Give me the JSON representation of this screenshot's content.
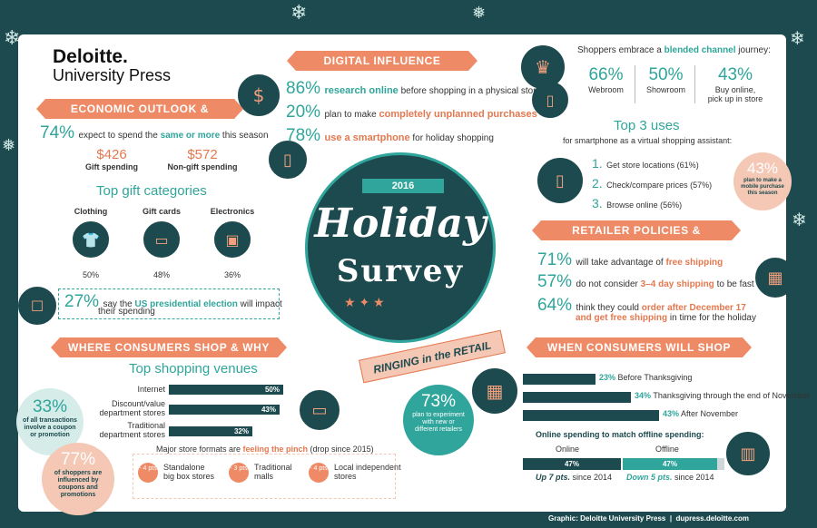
{
  "logo": {
    "line1": "Deloitte.",
    "line2": "University Press"
  },
  "banners": {
    "digital": "DIGITAL INFLUENCE",
    "economic": "ECONOMIC OUTLOOK & SPENDING",
    "retailer": "RETAILER POLICIES & PRACTICES",
    "where": "WHERE CONSUMERS SHOP & WHY",
    "when": "WHEN CONSUMERS WILL SHOP"
  },
  "digital": {
    "items": [
      {
        "pct": "86%",
        "bold": "research online",
        "rest": " before shopping in a physical store"
      },
      {
        "pct": "20%",
        "pre": "plan to make ",
        "bold": "completely unplanned purchases",
        "rest": ""
      },
      {
        "pct": "78%",
        "bold": "use a smartphone",
        "rest": " for holiday shopping"
      }
    ]
  },
  "economic": {
    "pct": "74%",
    "pre": "expect to spend the ",
    "bold": "same or more",
    "rest": " this season",
    "gift_value": "$426",
    "gift_label": "Gift spending",
    "nongift_value": "$572",
    "nongift_label": "Non-gift spending"
  },
  "gifts": {
    "title": "Top gift categories",
    "items": [
      {
        "label": "Clothing",
        "pct": "50%"
      },
      {
        "label": "Gift cards",
        "pct": "48%"
      },
      {
        "label": "Electronics",
        "pct": "36%"
      }
    ]
  },
  "election": {
    "pct": "27%",
    "pre": "say the ",
    "bold": "US presidential election",
    "rest": " will impact",
    "line2": "their spending"
  },
  "channel": {
    "intro_pre": "Shoppers embrace a ",
    "intro_bold": "blended channel",
    "intro_rest": " journey:",
    "items": [
      {
        "pct": "66%",
        "label": "Webroom"
      },
      {
        "pct": "50%",
        "label": "Showroom"
      },
      {
        "pct": "43%",
        "label": "Buy online,",
        "label2": "pick up in store"
      }
    ]
  },
  "uses": {
    "title": "Top 3 uses",
    "subtitle": "for smartphone as a virtual shopping assistant:",
    "items": [
      {
        "num": "1.",
        "text": "Get store locations (61%)"
      },
      {
        "num": "2.",
        "text": "Check/compare prices (57%)"
      },
      {
        "num": "3.",
        "text": "Browse online (56%)"
      }
    ]
  },
  "mobile_bubble": {
    "pct": "43%",
    "text": "plan to make a mobile purchase this season"
  },
  "center": {
    "year": "2016",
    "word1": "Holiday",
    "word2": "Survey",
    "ribbon": "RINGING in the RETAIL"
  },
  "retailer": {
    "items": [
      {
        "pct": "71%",
        "pre": "will take advantage of ",
        "bold": "free shipping",
        "rest": ""
      },
      {
        "pct": "57%",
        "pre": "do not consider ",
        "bold": "3–4 day shipping",
        "rest": " to be fast"
      },
      {
        "pct": "64%",
        "pre": "think they could ",
        "bold": "order after December 17",
        "line2_bold": "and get free shipping",
        "line2_rest": " in time for the holiday"
      }
    ]
  },
  "venues": {
    "title": "Top shopping venues",
    "rows": [
      {
        "label": "Internet",
        "label2": "",
        "value": "50%"
      },
      {
        "label": "Discount/value",
        "label2": "department stores",
        "value": "43%"
      },
      {
        "label": "Traditional",
        "label2": "department stores",
        "value": "32%"
      }
    ]
  },
  "coupon": {
    "pct": "33%",
    "text": "of all transactions involve a coupon or promotion"
  },
  "influenced": {
    "pct": "77%",
    "text": "of shoppers are influenced by coupons and promotions"
  },
  "pinch": {
    "pre": "Major store formats are ",
    "bold": "feeling the pinch",
    "rest": " (drop since 2015)",
    "items": [
      {
        "badge": "- 4 pts",
        "label": "Standalone",
        "label2": "big box stores"
      },
      {
        "badge": "- 3 pts",
        "label": "Traditional",
        "label2": "malls"
      },
      {
        "badge": "- 4 pts",
        "label": "Local independent",
        "label2": "stores"
      }
    ]
  },
  "experiment": {
    "pct": "73%",
    "text": "plan to experiment with new or different retailers"
  },
  "when": {
    "rows": [
      {
        "pct": "23%",
        "label": " Before Thanksgiving",
        "value": 23
      },
      {
        "pct": "34%",
        "label": " Thanksgiving through the end of November",
        "value": 34
      },
      {
        "pct": "43%",
        "label": " After November",
        "value": 43
      }
    ]
  },
  "online_offline": {
    "title": "Online spending to match offline spending:",
    "online_label": "Online",
    "offline_label": "Offline",
    "online_pct": "47%",
    "offline_pct": "47%",
    "online_note_bold": "Up 7 pts.",
    "online_note_rest": " since 2014",
    "offline_note_bold": "Down 5 pts.",
    "offline_note_rest": " since 2014"
  },
  "footer": {
    "text": "Graphic: Deloitte University Press  |  dupress.deloitte.com"
  },
  "colors": {
    "dark_teal": "#1d4a4e",
    "teal": "#2fa59b",
    "orange": "#ee8a66",
    "peach": "#f4c8b5"
  }
}
